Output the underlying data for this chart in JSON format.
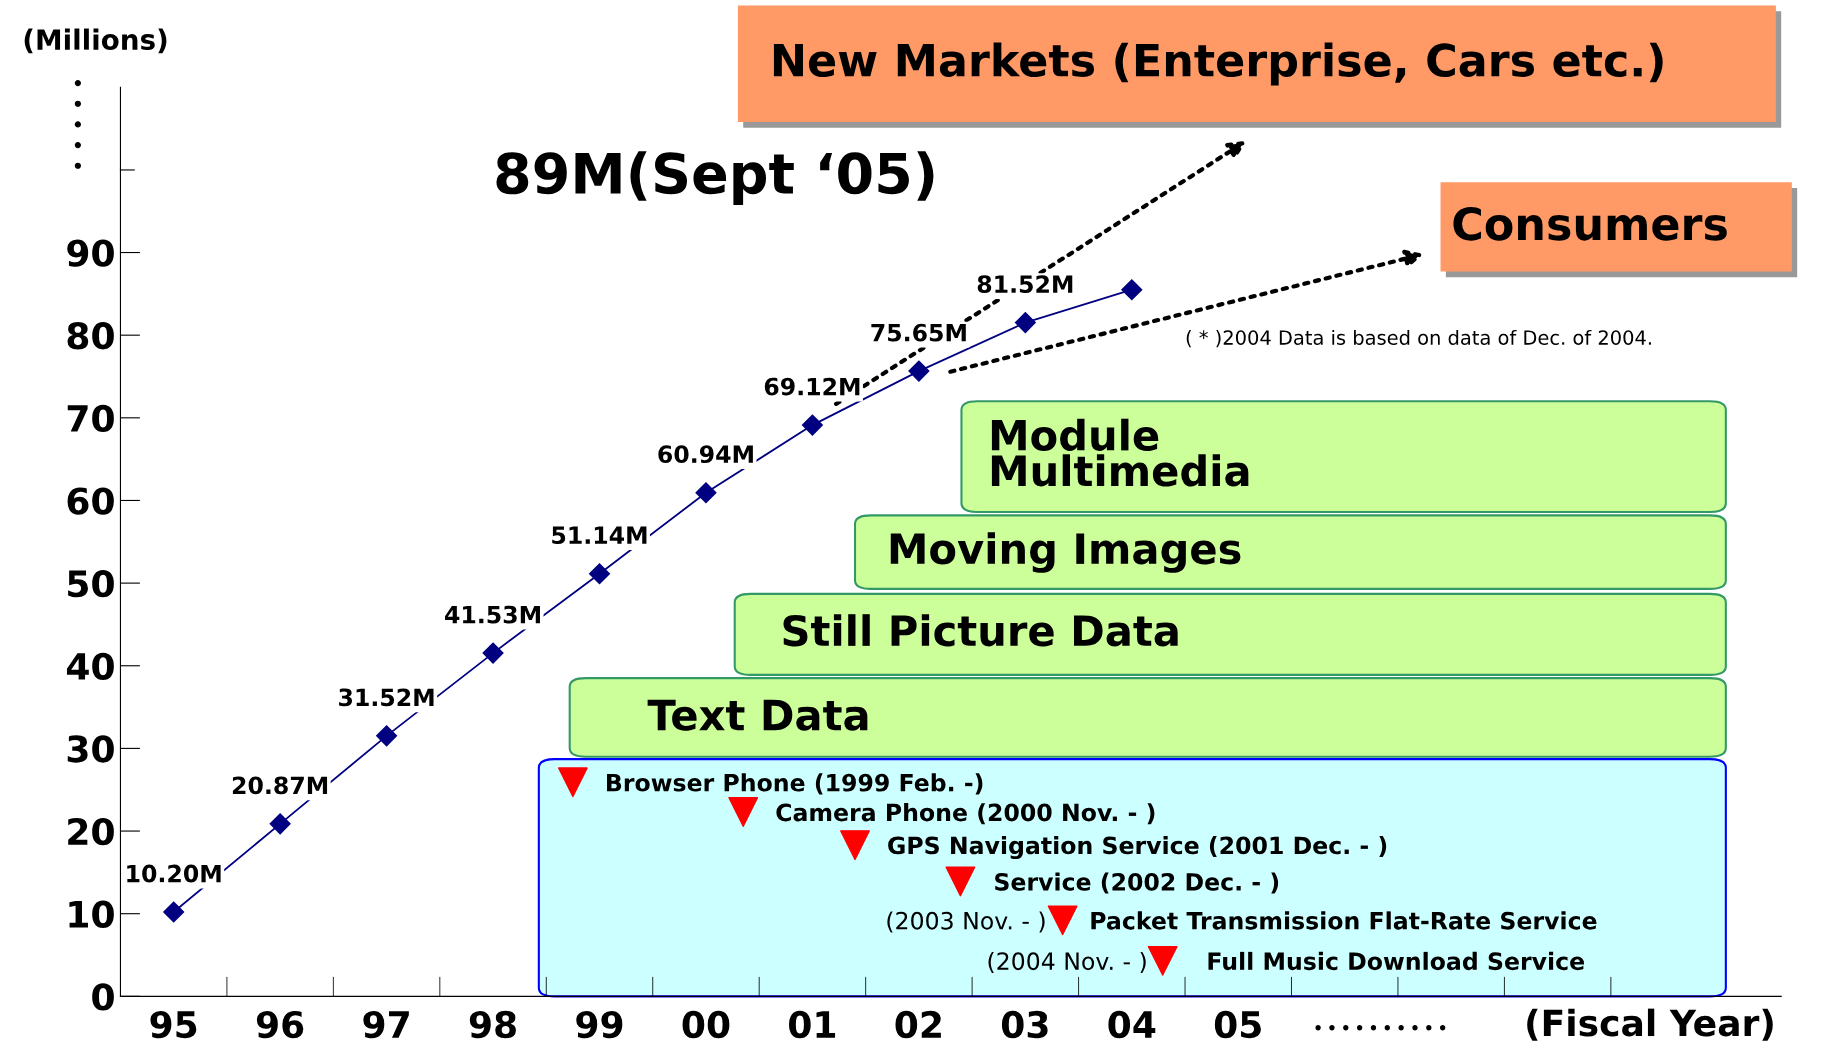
{
  "chart_data": {
    "type": "line",
    "ylabel": "(Millions)",
    "categories": [
      "95",
      "96",
      "97",
      "98",
      "99",
      "00",
      "01",
      "02",
      "03",
      "04",
      "05"
    ],
    "series": [
      {
        "color": "#000080",
        "values": [
          10.2,
          20.87,
          31.52,
          41.53,
          51.14,
          60.94,
          69.12,
          75.65,
          81.52,
          85.5,
          null
        ],
        "value_labels": [
          "10.20M",
          "20.87M",
          "31.52M",
          "41.53M",
          "51.14M",
          "60.94M",
          "69.12M",
          "75.65M",
          "81.52M",
          null,
          null
        ]
      }
    ],
    "ylim": [
      0,
      110
    ],
    "yticks": [
      0,
      10,
      20,
      30,
      40,
      50,
      60,
      70,
      80,
      90
    ],
    "marker": "diamond",
    "line_style": "solid",
    "grid": false,
    "legend": false,
    "annotations": [
      "89M(Sept ‘05)",
      "New Markets (Enterprise, Cars etc.)",
      "Consumers",
      "( * )2004 Data is based on data of Dec. of 2004.",
      "Module\nMultimedia",
      "Moving Images",
      "Still Picture Data",
      "Text Data",
      "Browser Phone (1999 Feb. -)",
      "Camera Phone (2000 Nov. - )",
      "GPS Navigation Service (2001 Dec. - )",
      "Service (2002 Dec. - )",
      "(2003 Nov. - )",
      "Packet Transmission Flat-Rate Service",
      "(2004 Nov. - )",
      "Full Music Download Service",
      "(Fiscal Year)"
    ]
  }
}
